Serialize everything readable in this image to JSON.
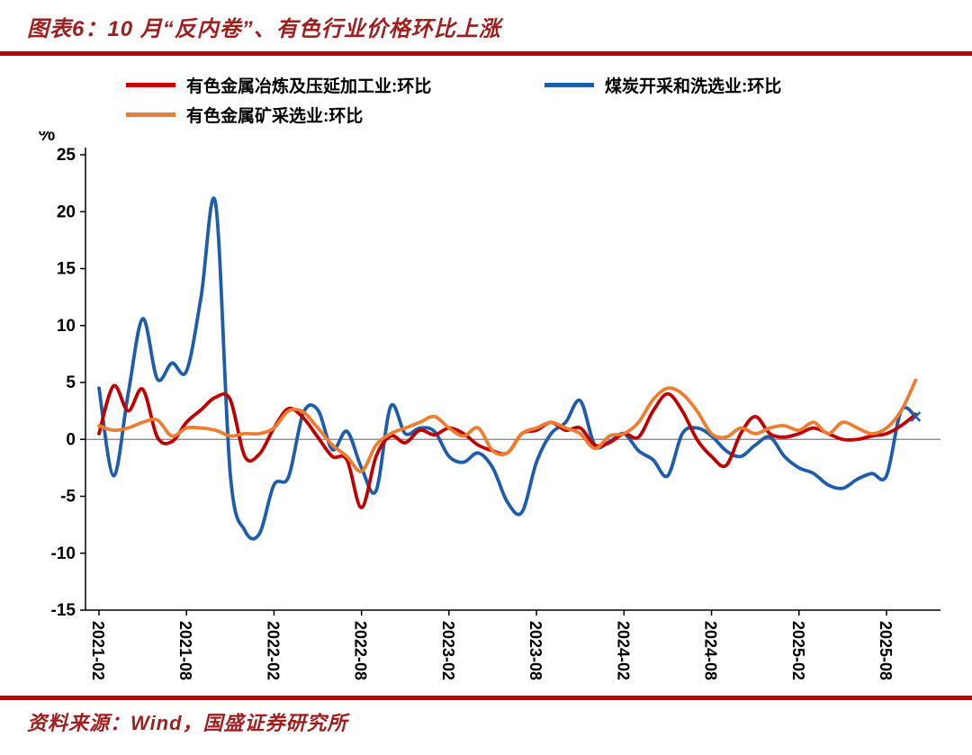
{
  "header": {
    "title": "图表6：10 月“反内卷”、有色行业价格环比上涨"
  },
  "footer": {
    "source": "资料来源：Wind，国盛证券研究所"
  },
  "colors": {
    "accent_red": "#C00000",
    "title_red": "#9E1F1F",
    "zero_line": "#7F7F7F",
    "axis": "#000000"
  },
  "chart_data": {
    "type": "line",
    "title": "10月“反内卷”、有色行业价格环比上涨",
    "ylabel": "%",
    "ylim": [
      -15,
      25
    ],
    "y_ticks": [
      25,
      20,
      15,
      10,
      5,
      0,
      -5,
      -10,
      -15
    ],
    "grid": false,
    "legend_position": "top",
    "x": [
      "2021-02",
      "2021-03",
      "2021-04",
      "2021-05",
      "2021-06",
      "2021-07",
      "2021-08",
      "2021-09",
      "2021-10",
      "2021-11",
      "2021-12",
      "2022-01",
      "2022-02",
      "2022-03",
      "2022-04",
      "2022-05",
      "2022-06",
      "2022-07",
      "2022-08",
      "2022-09",
      "2022-10",
      "2022-11",
      "2022-12",
      "2023-01",
      "2023-02",
      "2023-03",
      "2023-04",
      "2023-05",
      "2023-06",
      "2023-07",
      "2023-08",
      "2023-09",
      "2023-10",
      "2023-11",
      "2023-12",
      "2024-01",
      "2024-02",
      "2024-03",
      "2024-04",
      "2024-05",
      "2024-06",
      "2024-07",
      "2024-08",
      "2024-09",
      "2024-10",
      "2024-11",
      "2024-12",
      "2025-01",
      "2025-02",
      "2025-03",
      "2025-04",
      "2025-05",
      "2025-06",
      "2025-07",
      "2025-08",
      "2025-09",
      "2025-10"
    ],
    "x_tick_labels": [
      "2021-02",
      "2021-08",
      "2022-02",
      "2022-08",
      "2023-02",
      "2023-08",
      "2024-02",
      "2024-08",
      "2025-02",
      "2025-08"
    ],
    "series": [
      {
        "name": "有色金属冶炼及压延加工业:环比",
        "color": "#C00000",
        "values": [
          0.5,
          4.7,
          2.5,
          4.4,
          0.2,
          -0.2,
          1.5,
          2.6,
          3.7,
          3.5,
          -1.5,
          -1.3,
          1.0,
          2.7,
          1.9,
          0.2,
          -1.5,
          -1.8,
          -6.0,
          -1.5,
          0.3,
          -0.3,
          0.8,
          0.4,
          1.0,
          0.5,
          -0.5,
          -1.0,
          -1.2,
          0.5,
          0.8,
          1.5,
          0.8,
          1.0,
          -0.5,
          -0.3,
          0.5,
          0.2,
          2.5,
          4.0,
          2.5,
          0.0,
          -1.5,
          -2.3,
          0.5,
          2.0,
          0.5,
          0.2,
          0.5,
          1.0,
          0.5,
          0.0,
          0.0,
          0.3,
          0.5,
          1.2,
          2.2
        ]
      },
      {
        "name": "煤炭开采和洗选业:环比",
        "color": "#1F5CA9",
        "values": [
          4.5,
          -3.2,
          4.0,
          10.6,
          5.3,
          6.7,
          6.0,
          12.5,
          20.7,
          -3.0,
          -8.0,
          -8.3,
          -4.0,
          -3.3,
          2.3,
          2.6,
          -0.9,
          0.7,
          -2.5,
          -4.5,
          2.9,
          0.5,
          1.0,
          0.7,
          -1.5,
          -2.0,
          -1.2,
          -2.5,
          -5.5,
          -6.4,
          -2.0,
          0.5,
          1.5,
          3.4,
          -0.5,
          -0.2,
          0.5,
          -1.0,
          -1.8,
          -3.2,
          0.5,
          1.0,
          0.3,
          -1.0,
          -1.5,
          -0.5,
          0.2,
          -1.5,
          -2.5,
          -3.0,
          -4.0,
          -4.3,
          -3.5,
          -3.0,
          -3.2,
          2.5,
          2.0
        ]
      },
      {
        "name": "有色金属矿采选业:环比",
        "color": "#ED7D31",
        "values": [
          1.2,
          0.8,
          1.0,
          1.5,
          1.7,
          0.3,
          1.0,
          1.0,
          0.8,
          0.3,
          0.5,
          0.5,
          1.0,
          2.5,
          2.4,
          1.0,
          -0.5,
          -1.5,
          -2.8,
          -0.5,
          0.5,
          1.0,
          1.5,
          2.0,
          1.0,
          0.3,
          1.0,
          -1.0,
          -1.2,
          0.5,
          1.0,
          1.5,
          1.0,
          0.5,
          -0.8,
          0.3,
          0.5,
          1.5,
          3.5,
          4.5,
          4.0,
          2.5,
          0.5,
          0.2,
          1.0,
          0.5,
          1.0,
          1.2,
          0.8,
          1.5,
          0.5,
          1.5,
          1.0,
          0.5,
          1.0,
          2.5,
          5.2
        ]
      }
    ]
  }
}
